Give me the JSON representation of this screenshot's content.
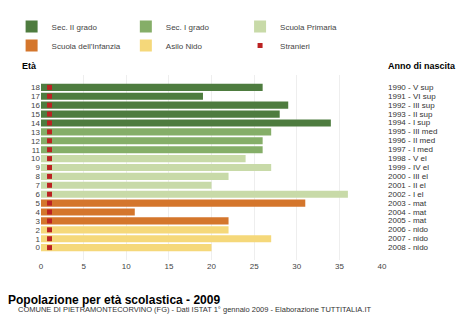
{
  "chart_data": {
    "type": "bar",
    "orientation": "horizontal",
    "title": "Popolazione per età scolastica - 2009",
    "subtitle": "COMUNE DI PIETRAMONTECORVINO (FG) - Dati ISTAT 1° gennaio 2009 - Elaborazione TUTTITALIA.IT",
    "ylabel": "Età",
    "y2label": "Anno di nascita",
    "categories": [
      "0",
      "1",
      "2",
      "3",
      "4",
      "5",
      "6",
      "7",
      "8",
      "9",
      "10",
      "11",
      "12",
      "13",
      "14",
      "15",
      "16",
      "17",
      "18"
    ],
    "series": [
      {
        "name": "Sec. II grado",
        "color": "#4e7c3f",
        "values": [
          null,
          null,
          null,
          null,
          null,
          null,
          null,
          null,
          null,
          null,
          null,
          null,
          null,
          null,
          34,
          28,
          29,
          19,
          26
        ]
      },
      {
        "name": "Sec. I grado",
        "color": "#85ae68",
        "values": [
          null,
          null,
          null,
          null,
          null,
          null,
          null,
          null,
          null,
          null,
          null,
          26,
          26,
          27,
          null,
          null,
          null,
          null,
          null
        ]
      },
      {
        "name": "Scuola Primaria",
        "color": "#c8daa8",
        "values": [
          null,
          null,
          null,
          null,
          null,
          null,
          36,
          20,
          22,
          27,
          24,
          null,
          null,
          null,
          null,
          null,
          null,
          null,
          null
        ]
      },
      {
        "name": "Scuola dell'Infanzia",
        "color": "#d4762c",
        "values": [
          null,
          null,
          null,
          22,
          11,
          31,
          null,
          null,
          null,
          null,
          null,
          null,
          null,
          null,
          null,
          null,
          null,
          null,
          null
        ]
      },
      {
        "name": "Asilo Nido",
        "color": "#f5d87a",
        "values": [
          20,
          27,
          22,
          null,
          null,
          null,
          null,
          null,
          null,
          null,
          null,
          null,
          null,
          null,
          null,
          null,
          null,
          null,
          null
        ]
      },
      {
        "name": "Stranieri",
        "type": "scatter",
        "marker": "square",
        "color": "#bb2222",
        "values": [
          1,
          1,
          1,
          1,
          1,
          1,
          1,
          1,
          1,
          1,
          1,
          1,
          1,
          1,
          1,
          1,
          1,
          1,
          1
        ]
      }
    ],
    "annotations": [
      {
        "y": "0",
        "text": "2008 - nido"
      },
      {
        "y": "1",
        "text": "2007 - nido"
      },
      {
        "y": "2",
        "text": "2006 - nido"
      },
      {
        "y": "3",
        "text": "2005 - mat"
      },
      {
        "y": "4",
        "text": "2004 - mat"
      },
      {
        "y": "5",
        "text": "2003 - mat"
      },
      {
        "y": "6",
        "text": "2002 - I el"
      },
      {
        "y": "7",
        "text": "2001 - II el"
      },
      {
        "y": "8",
        "text": "2000 - III el"
      },
      {
        "y": "9",
        "text": "1999 - IV el"
      },
      {
        "y": "10",
        "text": "1998 - V el"
      },
      {
        "y": "11",
        "text": "1997 - I med"
      },
      {
        "y": "12",
        "text": "1996 - II med"
      },
      {
        "y": "13",
        "text": "1995 - III med"
      },
      {
        "y": "14",
        "text": "1994 - I sup"
      },
      {
        "y": "15",
        "text": "1993 - II sup"
      },
      {
        "y": "16",
        "text": "1992 - III sup"
      },
      {
        "y": "17",
        "text": "1991 - VI sup"
      },
      {
        "y": "18",
        "text": "1990 - V sup"
      }
    ],
    "xlim": [
      0,
      40
    ],
    "xticks": [
      0,
      5,
      10,
      15,
      20,
      25,
      30,
      35,
      40
    ],
    "grid": true,
    "legend": "top"
  }
}
